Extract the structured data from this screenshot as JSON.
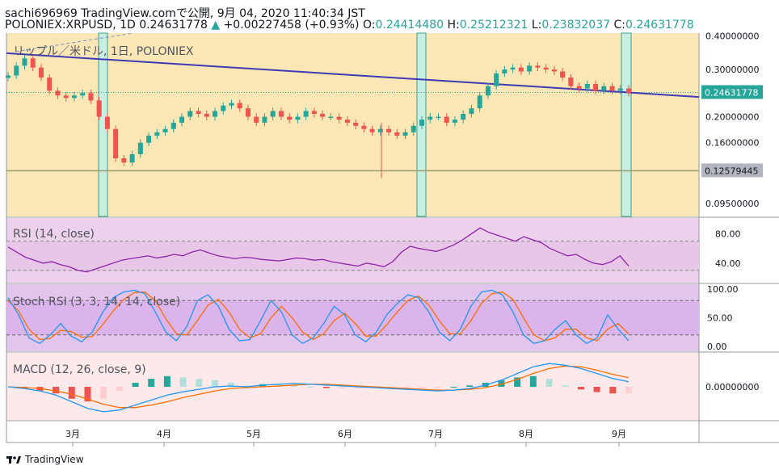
{
  "header": {
    "line1": "sachi696969 TradingView.comで公開, 9月 04, 2020 11:40:34 JST",
    "symbol": "POLONIEX:XRPUSD, 1D",
    "last": "0.24631778",
    "change_arrow": "▲",
    "change": "+0.00227458 (+0.93%)",
    "o_label": "O:",
    "o": "0.24414480",
    "h_label": "H:",
    "h": "0.25212321",
    "l_label": "L:",
    "l": "0.23832037",
    "c_label": "C:",
    "c": "0.24631778"
  },
  "brand": "TradingView",
  "chart_data": {
    "type": "candlestick",
    "title": "リップル／米ドル, 1日, POLONIEX",
    "price_axis_ticks": [
      "0.40000000",
      "0.30000000",
      "0.24631778",
      "0.20000000",
      "0.16000000",
      "0.12579445",
      "0.09500000"
    ],
    "price_tick_values": [
      0.4,
      0.3,
      0.2463,
      0.2,
      0.16,
      0.1258,
      0.095
    ],
    "last_price": "0.24631778",
    "horizontal_level": "0.12579445",
    "x_ticks": [
      "3月",
      "4月",
      "5月",
      "6月",
      "7月",
      "8月",
      "9月"
    ],
    "price_series": [
      0.285,
      0.31,
      0.33,
      0.305,
      0.28,
      0.25,
      0.24,
      0.235,
      0.24,
      0.245,
      0.23,
      0.2,
      0.18,
      0.14,
      0.135,
      0.145,
      0.16,
      0.17,
      0.175,
      0.18,
      0.19,
      0.2,
      0.21,
      0.205,
      0.2,
      0.21,
      0.22,
      0.225,
      0.215,
      0.2,
      0.19,
      0.2,
      0.21,
      0.2,
      0.195,
      0.2,
      0.21,
      0.205,
      0.2,
      0.2,
      0.195,
      0.19,
      0.185,
      0.18,
      0.175,
      0.18,
      0.175,
      0.17,
      0.175,
      0.185,
      0.195,
      0.2,
      0.2,
      0.19,
      0.195,
      0.205,
      0.215,
      0.24,
      0.26,
      0.29,
      0.3,
      0.305,
      0.295,
      0.31,
      0.305,
      0.3,
      0.295,
      0.28,
      0.26,
      0.255,
      0.265,
      0.25,
      0.26,
      0.25,
      0.255,
      0.245
    ],
    "rsi": {
      "label": "RSI (14, close)",
      "ticks": [
        "80.00",
        "40.00"
      ],
      "upper": 70,
      "lower": 30,
      "values": [
        62,
        55,
        48,
        44,
        40,
        42,
        38,
        35,
        30,
        28,
        32,
        36,
        40,
        44,
        46,
        48,
        50,
        47,
        49,
        52,
        50,
        55,
        58,
        54,
        50,
        48,
        46,
        48,
        47,
        45,
        44,
        43,
        45,
        47,
        46,
        44,
        45,
        42,
        40,
        38,
        36,
        40,
        38,
        35,
        42,
        55,
        63,
        60,
        58,
        56,
        60,
        65,
        72,
        80,
        88,
        82,
        78,
        74,
        70,
        76,
        72,
        68,
        60,
        55,
        50,
        52,
        45,
        40,
        38,
        42,
        50,
        36
      ]
    },
    "stoch_rsi": {
      "label": "Stoch RSI (3, 3, 14, 14, close)",
      "ticks": [
        "100.00",
        "50.00",
        "0.00"
      ],
      "upper": 80,
      "lower": 20,
      "k": [
        85,
        55,
        15,
        5,
        20,
        40,
        18,
        8,
        25,
        60,
        85,
        95,
        98,
        92,
        60,
        25,
        10,
        35,
        80,
        90,
        70,
        30,
        10,
        12,
        45,
        80,
        60,
        20,
        5,
        15,
        40,
        70,
        55,
        20,
        8,
        25,
        55,
        75,
        90,
        85,
        60,
        25,
        10,
        30,
        70,
        95,
        98,
        90,
        60,
        20,
        5,
        10,
        30,
        45,
        20,
        5,
        15,
        55,
        30,
        10
      ],
      "d": [
        80,
        62,
        30,
        12,
        14,
        28,
        26,
        16,
        17,
        38,
        62,
        82,
        94,
        95,
        80,
        48,
        22,
        20,
        45,
        72,
        82,
        60,
        30,
        15,
        22,
        50,
        70,
        50,
        25,
        12,
        22,
        45,
        58,
        40,
        18,
        18,
        38,
        60,
        80,
        88,
        72,
        45,
        22,
        22,
        45,
        75,
        92,
        95,
        82,
        50,
        20,
        10,
        15,
        30,
        30,
        15,
        10,
        30,
        40,
        22
      ]
    },
    "macd": {
      "label": "MACD (12, 26, close, 9)",
      "ticks": [
        "0.00000000"
      ],
      "macd_line": [
        0.0,
        -0.002,
        -0.005,
        -0.01,
        -0.018,
        -0.026,
        -0.03,
        -0.028,
        -0.022,
        -0.016,
        -0.01,
        -0.006,
        -0.003,
        0.0,
        0.001,
        0.0,
        0.002,
        0.003,
        0.004,
        0.003,
        0.002,
        0.001,
        0.0,
        -0.001,
        -0.002,
        -0.003,
        -0.004,
        -0.005,
        -0.004,
        -0.002,
        0.002,
        0.008,
        0.016,
        0.024,
        0.028,
        0.026,
        0.022,
        0.016,
        0.01,
        0.006
      ],
      "signal_line": [
        0.0,
        -0.001,
        -0.002,
        -0.005,
        -0.009,
        -0.015,
        -0.021,
        -0.025,
        -0.025,
        -0.022,
        -0.018,
        -0.013,
        -0.009,
        -0.005,
        -0.002,
        -0.001,
        0.0,
        0.001,
        0.002,
        0.003,
        0.003,
        0.002,
        0.001,
        0.0,
        -0.001,
        -0.002,
        -0.003,
        -0.004,
        -0.004,
        -0.003,
        -0.001,
        0.003,
        0.009,
        0.016,
        0.022,
        0.025,
        0.024,
        0.02,
        0.015,
        0.011
      ]
    }
  },
  "colors": {
    "up": "#26a69a",
    "down": "#ef5350",
    "trendline": "#3f3ab5",
    "rsi": "#8e24aa",
    "stoch_k": "#2196f3",
    "stoch_d": "#ff6d00",
    "macd": "#2196f3",
    "signal": "#ff6d00",
    "price_bg": "#fbe7b5",
    "rsi_bg": "#ecd0ec",
    "stoch_bg": "#e3c4ec",
    "macd_bg": "#fde9ea",
    "highlight": "#c9eee1"
  }
}
